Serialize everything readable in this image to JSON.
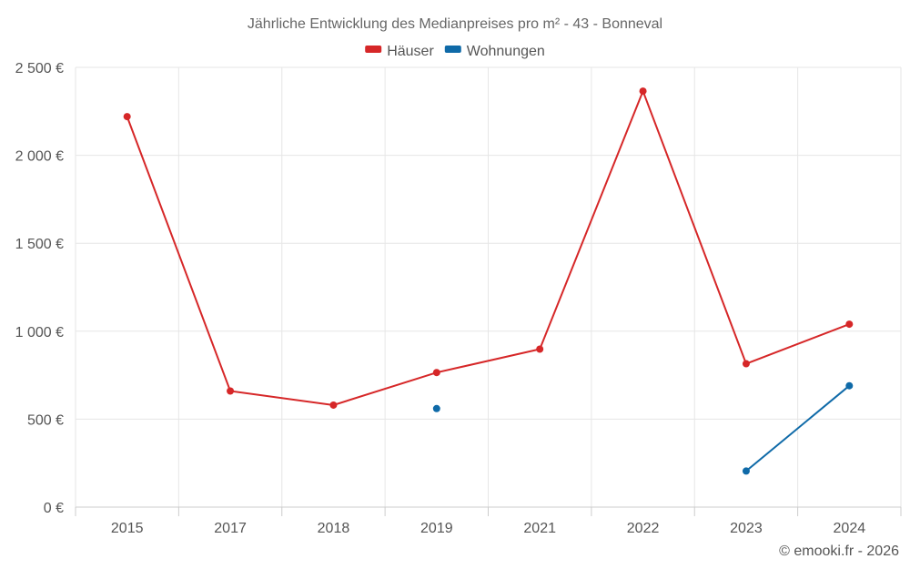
{
  "chart_data": {
    "type": "line",
    "title": "Jährliche Entwicklung des Medianpreises pro m² - 43 - Bonneval",
    "categories": [
      "2015",
      "2017",
      "2018",
      "2019",
      "2021",
      "2022",
      "2023",
      "2024"
    ],
    "series": [
      {
        "name": "Häuser",
        "color": "#d62728",
        "values": [
          2220,
          660,
          580,
          765,
          898,
          2365,
          815,
          1040
        ]
      },
      {
        "name": "Wohnungen",
        "color": "#0f6aa8",
        "values": [
          null,
          null,
          null,
          560,
          null,
          null,
          205,
          690
        ]
      }
    ],
    "ylim": [
      0,
      2500
    ],
    "yticks": [
      0,
      500,
      1000,
      1500,
      2000,
      2500
    ],
    "ytick_labels": [
      "0 €",
      "500 €",
      "1 000 €",
      "1 500 €",
      "2 000 €",
      "2 500 €"
    ],
    "grid": true,
    "legend_position": "top-center"
  },
  "credit": "© emooki.fr - 2026"
}
